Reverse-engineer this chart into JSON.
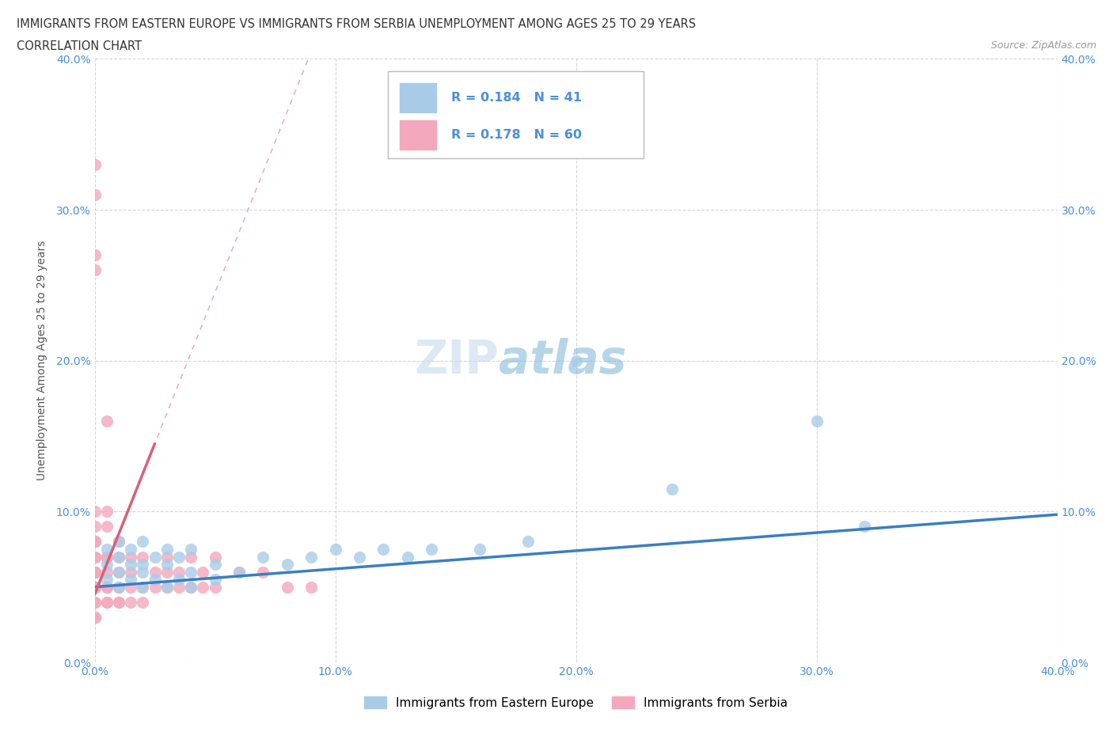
{
  "title_line1": "IMMIGRANTS FROM EASTERN EUROPE VS IMMIGRANTS FROM SERBIA UNEMPLOYMENT AMONG AGES 25 TO 29 YEARS",
  "title_line2": "CORRELATION CHART",
  "source": "Source: ZipAtlas.com",
  "ylabel": "Unemployment Among Ages 25 to 29 years",
  "xlim": [
    0.0,
    0.4
  ],
  "ylim": [
    0.0,
    0.4
  ],
  "xticks": [
    0.0,
    0.1,
    0.2,
    0.3,
    0.4
  ],
  "yticks": [
    0.0,
    0.1,
    0.2,
    0.3,
    0.4
  ],
  "xticklabels": [
    "0.0%",
    "10.0%",
    "20.0%",
    "30.0%",
    "40.0%"
  ],
  "yticklabels": [
    "0.0%",
    "10.0%",
    "20.0%",
    "30.0%",
    "40.0%"
  ],
  "R_eastern": 0.184,
  "N_eastern": 41,
  "R_serbia": 0.178,
  "N_serbia": 60,
  "color_eastern": "#A8CCE8",
  "color_serbia": "#F4A8BC",
  "trendline_eastern_color": "#3A7FC1",
  "trendline_serbia_color": "#D9607A",
  "legend_label_eastern": "Immigrants from Eastern Europe",
  "legend_label_serbia": "Immigrants from Serbia",
  "eastern_x": [
    0.005,
    0.005,
    0.005,
    0.01,
    0.01,
    0.01,
    0.01,
    0.015,
    0.015,
    0.015,
    0.02,
    0.02,
    0.02,
    0.02,
    0.025,
    0.025,
    0.03,
    0.03,
    0.03,
    0.035,
    0.035,
    0.04,
    0.04,
    0.04,
    0.05,
    0.05,
    0.06,
    0.07,
    0.08,
    0.09,
    0.1,
    0.11,
    0.12,
    0.13,
    0.14,
    0.16,
    0.18,
    0.2,
    0.24,
    0.3,
    0.32
  ],
  "eastern_y": [
    0.055,
    0.065,
    0.075,
    0.05,
    0.06,
    0.07,
    0.08,
    0.055,
    0.065,
    0.075,
    0.05,
    0.06,
    0.065,
    0.08,
    0.055,
    0.07,
    0.05,
    0.065,
    0.075,
    0.055,
    0.07,
    0.05,
    0.06,
    0.075,
    0.055,
    0.065,
    0.06,
    0.07,
    0.065,
    0.07,
    0.075,
    0.07,
    0.075,
    0.07,
    0.075,
    0.075,
    0.08,
    0.2,
    0.115,
    0.16,
    0.09
  ],
  "serbia_x": [
    0.0,
    0.0,
    0.0,
    0.0,
    0.0,
    0.0,
    0.0,
    0.0,
    0.0,
    0.0,
    0.0,
    0.0,
    0.0,
    0.0,
    0.0,
    0.0,
    0.0,
    0.0,
    0.0,
    0.0,
    0.005,
    0.005,
    0.005,
    0.005,
    0.005,
    0.005,
    0.005,
    0.005,
    0.005,
    0.005,
    0.01,
    0.01,
    0.01,
    0.01,
    0.01,
    0.01,
    0.015,
    0.015,
    0.015,
    0.015,
    0.02,
    0.02,
    0.02,
    0.025,
    0.025,
    0.03,
    0.03,
    0.03,
    0.035,
    0.035,
    0.04,
    0.04,
    0.045,
    0.045,
    0.05,
    0.05,
    0.06,
    0.07,
    0.08,
    0.09
  ],
  "serbia_y": [
    0.03,
    0.04,
    0.04,
    0.05,
    0.05,
    0.05,
    0.06,
    0.06,
    0.06,
    0.07,
    0.07,
    0.08,
    0.08,
    0.09,
    0.1,
    0.31,
    0.33,
    0.26,
    0.27,
    0.03,
    0.04,
    0.04,
    0.05,
    0.05,
    0.06,
    0.07,
    0.07,
    0.09,
    0.1,
    0.16,
    0.04,
    0.04,
    0.05,
    0.06,
    0.07,
    0.08,
    0.04,
    0.05,
    0.06,
    0.07,
    0.04,
    0.05,
    0.07,
    0.05,
    0.06,
    0.05,
    0.06,
    0.07,
    0.05,
    0.06,
    0.05,
    0.07,
    0.05,
    0.06,
    0.05,
    0.07,
    0.06,
    0.06,
    0.05,
    0.05
  ],
  "grid_color": "#CCCCCC",
  "background_color": "#FFFFFF",
  "tick_color": "#4A90D9",
  "watermark_color": "#C8DCF0",
  "serbia_trend_x_start": 0.0,
  "serbia_trend_x_end": 0.025,
  "serbia_trend_y_start": 0.045,
  "serbia_trend_y_end": 0.145,
  "serbia_trend_dotted_x_start": 0.0,
  "serbia_trend_dotted_x_end": 0.4,
  "eastern_trend_x_start": 0.0,
  "eastern_trend_x_end": 0.4,
  "eastern_trend_y_start": 0.05,
  "eastern_trend_y_end": 0.098
}
